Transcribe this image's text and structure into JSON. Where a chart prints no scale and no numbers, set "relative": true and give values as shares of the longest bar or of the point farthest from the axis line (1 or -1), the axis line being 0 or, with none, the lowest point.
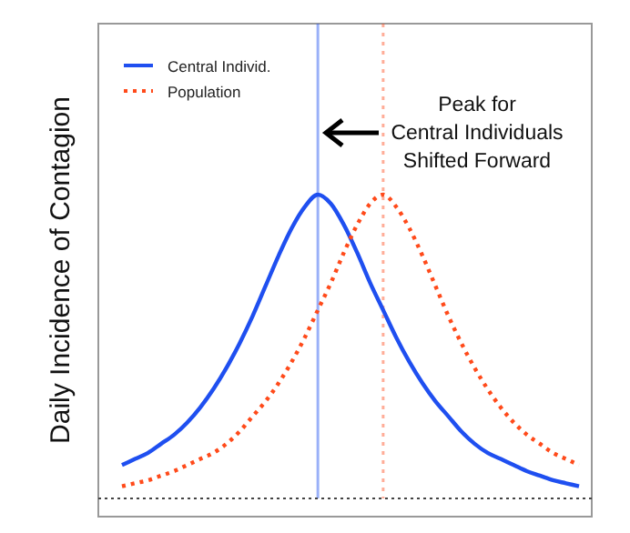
{
  "chart_data": {
    "type": "line",
    "relative": true,
    "ylabel": "Daily Incidence of Contagion",
    "legend": "top left",
    "categories": [
      null,
      null,
      null,
      null,
      null,
      null,
      null,
      null,
      null,
      null,
      null,
      null,
      null,
      null,
      null,
      null,
      null,
      null,
      null,
      null,
      null,
      null,
      null,
      null,
      null,
      null,
      null,
      null,
      null,
      null,
      null,
      null,
      null,
      null,
      null,
      null
    ],
    "series": [
      {
        "name": "Central Individ.",
        "color": "#1f4ff0",
        "line_style": "solid",
        "values": [
          0.11,
          0.13,
          0.15,
          0.18,
          0.21,
          0.25,
          0.3,
          0.36,
          0.43,
          0.51,
          0.6,
          0.7,
          0.8,
          0.89,
          0.96,
          1,
          0.97,
          0.9,
          0.81,
          0.71,
          0.62,
          0.53,
          0.45,
          0.38,
          0.32,
          0.27,
          0.22,
          0.18,
          0.15,
          0.13,
          0.11,
          0.09,
          0.075,
          0.06,
          0.05,
          0.04
        ]
      },
      {
        "name": "Population",
        "color": "#ff4a1a",
        "line_style": "dotted",
        "values": [
          0.04,
          0.05,
          0.06,
          0.075,
          0.09,
          0.11,
          0.13,
          0.15,
          0.18,
          0.22,
          0.27,
          0.32,
          0.38,
          0.45,
          0.53,
          0.62,
          0.71,
          0.81,
          0.9,
          0.97,
          1,
          0.96,
          0.89,
          0.8,
          0.7,
          0.6,
          0.51,
          0.43,
          0.36,
          0.3,
          0.25,
          0.21,
          0.18,
          0.15,
          0.13,
          0.11
        ]
      }
    ],
    "annotations": [
      "Peak for\nCentral Individuals\nShifted Forward"
    ]
  }
}
